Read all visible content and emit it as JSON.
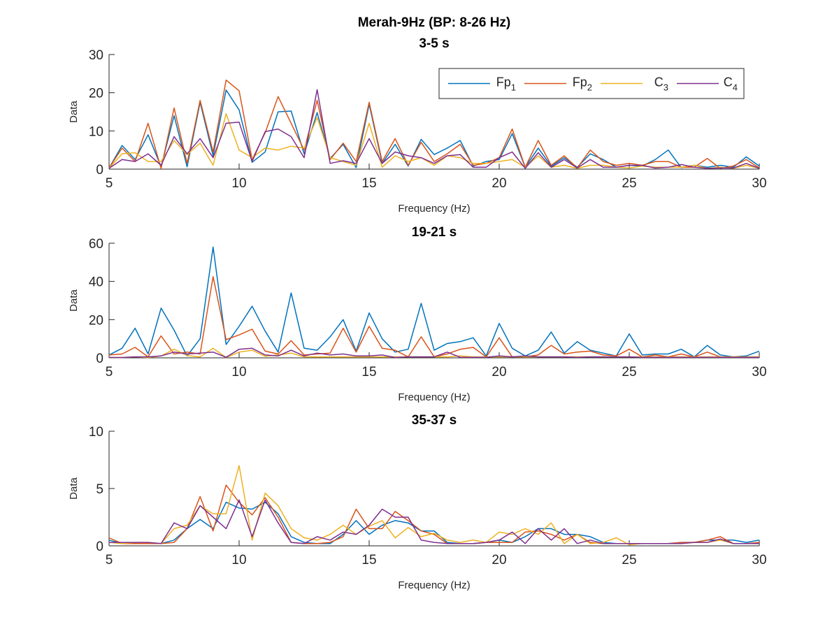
{
  "figure": {
    "suptitle": "Merah-9Hz (BP: 8-26 Hz)"
  },
  "legend": {
    "placement": "top-right of first panel, horizontal",
    "entries": [
      {
        "base": "Fp",
        "sub": "1",
        "color": "#0072BD"
      },
      {
        "base": "Fp",
        "sub": "2",
        "color": "#D95319"
      },
      {
        "base": "C",
        "sub": "3",
        "color": "#EDB120"
      },
      {
        "base": "C",
        "sub": "4",
        "color": "#7E2F8E"
      }
    ]
  },
  "chart_data": [
    {
      "type": "line",
      "title": "3-5 s",
      "xlabel": "Frequency (Hz)",
      "ylabel": "Data",
      "xlim": [
        5,
        30
      ],
      "ylim": [
        0,
        30
      ],
      "xticks": [
        "5",
        "10",
        "15",
        "20",
        "25",
        "30"
      ],
      "yticks": [
        "0",
        "10",
        "20",
        "30"
      ],
      "x_start": 5,
      "x_step": 0.5,
      "series": [
        {
          "name": "Fp1",
          "color": "#0072BD",
          "values": [
            0.3,
            6.2,
            2.5,
            9,
            0.6,
            14,
            0.6,
            17.5,
            3.5,
            20.7,
            15.5,
            1.8,
            4.5,
            15,
            15.2,
            4,
            14.8,
            2.8,
            6.5,
            0.4,
            17,
            1.5,
            6.5,
            0.8,
            7.8,
            3.8,
            5.5,
            7.5,
            0.8,
            2,
            2.5,
            9.3,
            0.5,
            5.5,
            0.8,
            3,
            0.5,
            4,
            2.5,
            0.5,
            1,
            0.8,
            2.5,
            5,
            0.4,
            1,
            0.5,
            1,
            0.5,
            3.2,
            0.8
          ]
        },
        {
          "name": "Fp2",
          "color": "#D95319",
          "values": [
            0.3,
            5.5,
            2,
            12,
            0.2,
            16,
            1.5,
            18,
            4.5,
            23.3,
            20.5,
            2.5,
            9.5,
            19,
            12,
            5,
            18,
            2.5,
            6.8,
            2,
            17.5,
            2,
            8,
            1,
            7,
            2,
            4,
            6.5,
            1,
            1.5,
            3,
            10.5,
            0.5,
            7.5,
            1,
            3.5,
            0.3,
            5,
            2,
            1,
            1.5,
            1,
            2,
            2,
            0.5,
            0.5,
            2.8,
            0.2,
            0.8,
            2.5,
            0.3
          ]
        },
        {
          "name": "C3",
          "color": "#EDB120",
          "values": [
            0.2,
            4,
            4.3,
            2,
            2,
            7.5,
            3.8,
            6.8,
            1,
            14.5,
            5,
            3,
            5.5,
            5,
            6,
            5.5,
            13.5,
            3,
            2,
            1,
            12,
            0.5,
            3.5,
            2,
            3,
            1,
            3.5,
            3,
            1.5,
            1.5,
            2,
            2.5,
            0.5,
            3.5,
            0.5,
            1,
            0.2,
            1,
            1,
            0.5,
            0.3,
            0.8,
            0.5,
            0.5,
            0.5,
            1,
            0.2,
            0.5,
            0.2,
            1,
            0.2
          ]
        },
        {
          "name": "C4",
          "color": "#7E2F8E",
          "values": [
            0.2,
            2.5,
            2,
            4,
            1,
            8.5,
            4,
            8,
            3,
            12,
            12.3,
            2,
            9.8,
            10.5,
            8.5,
            3,
            20.8,
            1.5,
            2.2,
            1.5,
            8,
            1.5,
            4.5,
            3.5,
            3,
            1.5,
            3.5,
            3.8,
            0.5,
            0.5,
            3,
            4.5,
            0.2,
            4.3,
            0.5,
            2.5,
            0.3,
            2.5,
            0.5,
            0.5,
            1,
            1,
            0.3,
            0.5,
            1.2,
            0.5,
            0.2,
            0.3,
            0.3,
            1.5,
            0.2
          ]
        }
      ]
    },
    {
      "type": "line",
      "title": "19-21 s",
      "xlabel": "Frequency (Hz)",
      "ylabel": "Data",
      "xlim": [
        5,
        30
      ],
      "ylim": [
        0,
        60
      ],
      "xticks": [
        "5",
        "10",
        "15",
        "20",
        "25",
        "30"
      ],
      "yticks": [
        "0",
        "20",
        "40",
        "60"
      ],
      "x_start": 5,
      "x_step": 0.5,
      "series": [
        {
          "name": "Fp1",
          "color": "#0072BD",
          "values": [
            1.5,
            5,
            15.5,
            2,
            26,
            14.5,
            1,
            10,
            58,
            7,
            16.5,
            27,
            14,
            3,
            34,
            5,
            4,
            11,
            20,
            3.5,
            23.5,
            10,
            3,
            4.5,
            28.5,
            4,
            7.5,
            8.5,
            10.5,
            1,
            18,
            5,
            1,
            4,
            13.5,
            2.5,
            8.5,
            4,
            2.5,
            1,
            12.5,
            1.5,
            2,
            2,
            4.5,
            0.5,
            6.5,
            1.5,
            0.5,
            1,
            3.5
          ]
        },
        {
          "name": "Fp2",
          "color": "#D95319",
          "values": [
            1.5,
            2,
            5.5,
            0.5,
            11.5,
            2,
            3,
            2,
            42.5,
            9.5,
            12,
            15,
            3.5,
            2,
            9,
            1.5,
            2,
            2.5,
            15.5,
            3,
            16.5,
            5,
            4,
            0.5,
            11,
            0.5,
            2,
            4.5,
            5.5,
            0.5,
            10.5,
            0.5,
            0.5,
            1.5,
            6.5,
            2,
            3,
            3.5,
            1.5,
            1,
            4.5,
            0.5,
            1.5,
            0.5,
            2,
            0.5,
            3,
            0.5,
            0.5,
            0.5,
            0.5
          ]
        },
        {
          "name": "C3",
          "color": "#EDB120",
          "values": [
            0.2,
            0.2,
            0.5,
            0.2,
            1,
            4.5,
            1.2,
            0.5,
            5,
            0.2,
            3,
            4,
            0.8,
            1.5,
            2.5,
            0.5,
            0.5,
            0.5,
            0.5,
            0.5,
            0.5,
            0.5,
            0.5,
            0.5,
            0.5,
            0.5,
            0.5,
            1,
            0.5,
            0.5,
            0.5,
            0.5,
            0.5,
            0.5,
            0.5,
            0.5,
            0.5,
            0.5,
            0.5,
            0.5,
            0.5,
            0.5,
            0.5,
            0.5,
            0.5,
            0.5,
            0.5,
            0.5,
            0.5,
            0.5,
            0.5
          ]
        },
        {
          "name": "C4",
          "color": "#7E2F8E",
          "values": [
            0.2,
            0.2,
            0.5,
            0.5,
            1,
            3,
            2,
            2.5,
            3,
            0.3,
            4.5,
            5,
            1.5,
            1,
            4,
            1,
            2.5,
            1.5,
            2,
            1,
            1,
            1.5,
            0.2,
            0.5,
            0.5,
            0.5,
            3,
            0.3,
            0.3,
            0.3,
            1,
            0.5,
            1,
            0.5,
            0.5,
            0.5,
            0.3,
            0.5,
            0.5,
            0.5,
            0.5,
            0.3,
            0.3,
            0.3,
            0.3,
            0.3,
            0.3,
            0.3,
            0.3,
            0.3,
            0.3
          ]
        }
      ]
    },
    {
      "type": "line",
      "title": "35-37 s",
      "xlabel": "Frequency (Hz)",
      "ylabel": "Data",
      "xlim": [
        5,
        30
      ],
      "ylim": [
        0,
        10
      ],
      "xticks": [
        "5",
        "10",
        "15",
        "20",
        "25",
        "30"
      ],
      "yticks": [
        "0",
        "5",
        "10"
      ],
      "x_start": 5,
      "x_step": 0.5,
      "series": [
        {
          "name": "Fp1",
          "color": "#0072BD",
          "values": [
            0.5,
            0.2,
            0.2,
            0.2,
            0.2,
            0.5,
            1.5,
            2.3,
            1.5,
            3.8,
            3.3,
            3.2,
            3.8,
            2.8,
            0.8,
            0.3,
            0.2,
            0.2,
            1,
            2.2,
            1,
            1.8,
            2.2,
            2,
            1.3,
            1.3,
            0.3,
            0.2,
            0.2,
            0.3,
            0.5,
            0.3,
            0.8,
            1.5,
            1.5,
            1,
            1,
            0.8,
            0.3,
            0.2,
            0.2,
            0.2,
            0.2,
            0.2,
            0.3,
            0.3,
            0.5,
            0.5,
            0.5,
            0.3,
            0.5
          ]
        },
        {
          "name": "Fp2",
          "color": "#D95319",
          "values": [
            0.7,
            0.2,
            0.2,
            0.2,
            0.2,
            0.3,
            1.5,
            4.3,
            1.3,
            5.3,
            3.8,
            2.7,
            4.2,
            2.5,
            0.3,
            0.2,
            0.2,
            0.3,
            0.8,
            3.2,
            1.5,
            1.5,
            3,
            2.2,
            1.3,
            1,
            0.2,
            0.2,
            0.2,
            0.3,
            0.3,
            0.3,
            1.2,
            1.3,
            1,
            0.5,
            1,
            0.3,
            0.2,
            0.2,
            0.2,
            0.2,
            0.2,
            0.2,
            0.3,
            0.3,
            0.5,
            0.8,
            0.2,
            0.2,
            0.3
          ]
        },
        {
          "name": "C3",
          "color": "#EDB120",
          "values": [
            0.3,
            0.2,
            0.3,
            0.3,
            0.2,
            1.5,
            1.8,
            3.5,
            2.8,
            2.8,
            7,
            0.5,
            4.6,
            3.5,
            1.5,
            0.7,
            0.5,
            1,
            1.8,
            1,
            1.7,
            2.2,
            0.7,
            1.6,
            0.8,
            1.1,
            0.5,
            0.3,
            0.5,
            0.3,
            1.2,
            1,
            1.5,
            1,
            2,
            0.2,
            1,
            0.2,
            0.3,
            0.7,
            0.1,
            0.2,
            0.2,
            0.2,
            0.2,
            0.3,
            0.3,
            0.5,
            0.2,
            0.2,
            0.2
          ]
        },
        {
          "name": "C4",
          "color": "#7E2F8E",
          "values": [
            0.3,
            0.3,
            0.3,
            0.3,
            0.2,
            2,
            1.5,
            3.5,
            2.5,
            1.5,
            4,
            0.8,
            4,
            2,
            0.3,
            0.2,
            0.8,
            0.5,
            1.2,
            1,
            1.8,
            3.2,
            2.5,
            2.5,
            0.5,
            0.3,
            0.2,
            0.2,
            0.2,
            0.3,
            0.5,
            1.2,
            0.2,
            1.5,
            0.5,
            1.5,
            0.2,
            0.5,
            0.2,
            0.2,
            0.2,
            0.2,
            0.2,
            0.2,
            0.2,
            0.3,
            0.3,
            0.6,
            0.2,
            0.2,
            0.2
          ]
        }
      ]
    }
  ]
}
